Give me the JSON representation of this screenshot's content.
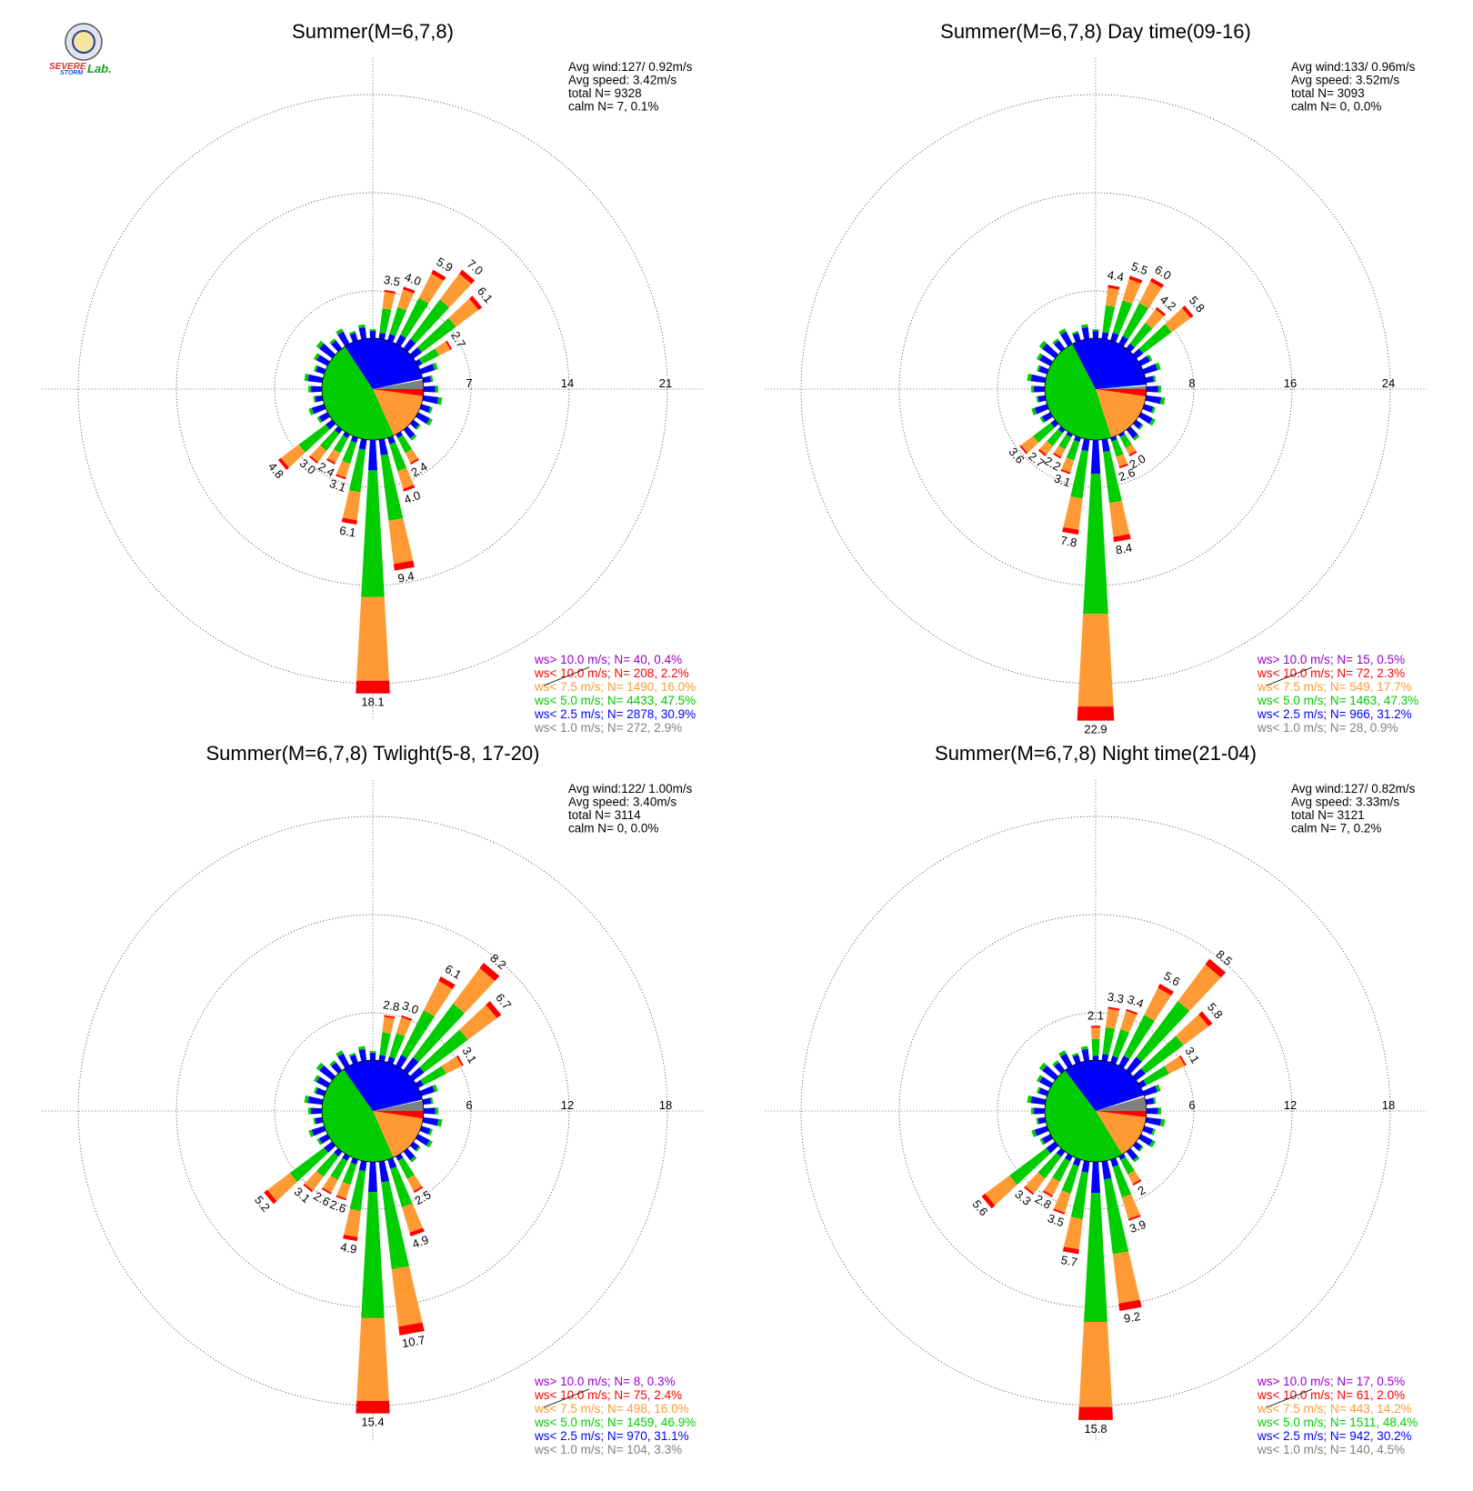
{
  "logo": {
    "text_severe": "SEVERE",
    "text_storm": "STORM",
    "text_lab": "Lab."
  },
  "colors": {
    "gt10": "#9900cc",
    "lt10": "#ff0000",
    "lt75": "#ff9933",
    "lt5": "#00cc00",
    "lt25": "#0000ff",
    "lt1": "#808080"
  },
  "chart_data": [
    {
      "type": "windrose",
      "title": "Summer(M=6,7,8)",
      "avg_wind": "Avg wind:127/ 0.92m/s",
      "avg_speed": "Avg speed: 3.42m/s",
      "total_n": "total N=      9328",
      "calm_n": "calm N=      7,   0.1%",
      "rings": [
        "7",
        "14",
        "21"
      ],
      "ring_values": [
        7,
        14,
        21
      ],
      "legend": [
        {
          "key": "gt10",
          "text": "ws> 10.0 m/s; N=    40,  0.4%"
        },
        {
          "key": "lt10",
          "text": "ws< 10.0 m/s; N=   208,  2.2%"
        },
        {
          "key": "lt75",
          "text": "ws<  7.5 m/s; N=  1490, 16.0%"
        },
        {
          "key": "lt5",
          "text": "ws<  5.0 m/s; N=  4433, 47.5%"
        },
        {
          "key": "lt25",
          "text": "ws<  2.5 m/s; N=  2878, 30.9%"
        },
        {
          "key": "lt1",
          "text": "ws<  1.0 m/s; N=   272,  2.9%"
        }
      ],
      "pie_percent": {
        "gt10": 0.4,
        "lt10": 2.2,
        "lt75": 16.0,
        "lt5": 47.5,
        "lt25": 30.9,
        "lt1": 2.9
      },
      "directions": [
        {
          "deg": 10,
          "value": 3.5,
          "label": "3.5"
        },
        {
          "deg": 20,
          "value": 4.0,
          "label": "4.0"
        },
        {
          "deg": 30,
          "value": 5.9,
          "label": "5.9"
        },
        {
          "deg": 40,
          "value": 7.0,
          "label": "7.0"
        },
        {
          "deg": 50,
          "value": 6.1,
          "label": "6.1"
        },
        {
          "deg": 60,
          "value": 2.7,
          "label": "2.7"
        },
        {
          "deg": 150,
          "value": 2.4,
          "label": "2.4"
        },
        {
          "deg": 160,
          "value": 4.0,
          "label": "4.0"
        },
        {
          "deg": 170,
          "value": 9.4,
          "label": "9.4"
        },
        {
          "deg": 180,
          "value": 18.1,
          "label": "18.1"
        },
        {
          "deg": 190,
          "value": 6.1,
          "label": "6.1"
        },
        {
          "deg": 200,
          "value": 3.1,
          "label": "3.1"
        },
        {
          "deg": 210,
          "value": 2.4,
          "label": "2.4"
        },
        {
          "deg": 220,
          "value": 3.0,
          "label": "3.0"
        },
        {
          "deg": 230,
          "value": 4.8,
          "label": "4.8"
        }
      ]
    },
    {
      "type": "windrose",
      "title": "Summer(M=6,7,8) Day time(09-16)",
      "avg_wind": "Avg wind:133/ 0.96m/s",
      "avg_speed": "Avg speed: 3.52m/s",
      "total_n": "total N=      3093",
      "calm_n": "calm N=      0,   0.0%",
      "rings": [
        "8",
        "16",
        "24"
      ],
      "ring_values": [
        8,
        16,
        24
      ],
      "legend": [
        {
          "key": "gt10",
          "text": "ws> 10.0 m/s; N=    15,  0.5%"
        },
        {
          "key": "lt10",
          "text": "ws< 10.0 m/s; N=    72,  2.3%"
        },
        {
          "key": "lt75",
          "text": "ws<  7.5 m/s; N=   549, 17.7%"
        },
        {
          "key": "lt5",
          "text": "ws<  5.0 m/s; N=  1463, 47.3%"
        },
        {
          "key": "lt25",
          "text": "ws<  2.5 m/s; N=   966, 31.2%"
        },
        {
          "key": "lt1",
          "text": "ws<  1.0 m/s; N=    28,  0.9%"
        }
      ],
      "pie_percent": {
        "gt10": 0.5,
        "lt10": 2.3,
        "lt75": 17.7,
        "lt5": 47.3,
        "lt25": 31.2,
        "lt1": 0.9
      },
      "directions": [
        {
          "deg": 10,
          "value": 4.4,
          "label": "4.4"
        },
        {
          "deg": 20,
          "value": 5.5,
          "label": "5.5"
        },
        {
          "deg": 30,
          "value": 6.0,
          "label": "6.0"
        },
        {
          "deg": 40,
          "value": 4.2,
          "label": "4.2"
        },
        {
          "deg": 50,
          "value": 5.8,
          "label": "5.8"
        },
        {
          "deg": 150,
          "value": 2.0,
          "label": "2.0"
        },
        {
          "deg": 160,
          "value": 2.6,
          "label": "2.6"
        },
        {
          "deg": 170,
          "value": 8.4,
          "label": "8.4"
        },
        {
          "deg": 180,
          "value": 22.9,
          "label": "22.9"
        },
        {
          "deg": 190,
          "value": 7.8,
          "label": "7.8"
        },
        {
          "deg": 200,
          "value": 3.1,
          "label": "3.1"
        },
        {
          "deg": 210,
          "value": 2.2,
          "label": "2.2"
        },
        {
          "deg": 220,
          "value": 2.7,
          "label": "2.7"
        },
        {
          "deg": 230,
          "value": 3.6,
          "label": "3.6"
        }
      ]
    },
    {
      "type": "windrose",
      "title": "Summer(M=6,7,8) Twlight(5-8, 17-20)",
      "avg_wind": "Avg wind:122/ 1.00m/s",
      "avg_speed": "Avg speed: 3.40m/s",
      "total_n": "total N=      3114",
      "calm_n": "calm N=      0,   0.0%",
      "rings": [
        "6",
        "12",
        "18"
      ],
      "ring_values": [
        6,
        12,
        18
      ],
      "legend": [
        {
          "key": "gt10",
          "text": "ws> 10.0 m/s; N=     8,  0.3%"
        },
        {
          "key": "lt10",
          "text": "ws< 10.0 m/s; N=    75,  2.4%"
        },
        {
          "key": "lt75",
          "text": "ws<  7.5 m/s; N=   498, 16.0%"
        },
        {
          "key": "lt5",
          "text": "ws<  5.0 m/s; N=  1459, 46.9%"
        },
        {
          "key": "lt25",
          "text": "ws<  2.5 m/s; N=   970, 31.1%"
        },
        {
          "key": "lt1",
          "text": "ws<  1.0 m/s; N=   104,  3.3%"
        }
      ],
      "pie_percent": {
        "gt10": 0.3,
        "lt10": 2.4,
        "lt75": 16.0,
        "lt5": 46.9,
        "lt25": 31.1,
        "lt1": 3.3
      },
      "directions": [
        {
          "deg": 10,
          "value": 2.8,
          "label": "2.8"
        },
        {
          "deg": 20,
          "value": 3.0,
          "label": "3.0"
        },
        {
          "deg": 30,
          "value": 6.1,
          "label": "6.1"
        },
        {
          "deg": 40,
          "value": 8.2,
          "label": "8.2"
        },
        {
          "deg": 50,
          "value": 6.7,
          "label": "6.7"
        },
        {
          "deg": 60,
          "value": 3.1,
          "label": "3.1"
        },
        {
          "deg": 150,
          "value": 2.5,
          "label": "2.5"
        },
        {
          "deg": 160,
          "value": 4.9,
          "label": "4.9"
        },
        {
          "deg": 170,
          "value": 10.7,
          "label": "10.7"
        },
        {
          "deg": 180,
          "value": 15.4,
          "label": "15.4"
        },
        {
          "deg": 190,
          "value": 4.9,
          "label": "4.9"
        },
        {
          "deg": 200,
          "value": 2.6,
          "label": "2.6"
        },
        {
          "deg": 210,
          "value": 2.6,
          "label": "2.6"
        },
        {
          "deg": 220,
          "value": 3.1,
          "label": "3.1"
        },
        {
          "deg": 230,
          "value": 5.2,
          "label": "5.2"
        }
      ]
    },
    {
      "type": "windrose",
      "title": "Summer(M=6,7,8) Night time(21-04)",
      "avg_wind": "Avg wind:127/ 0.82m/s",
      "avg_speed": "Avg speed: 3.33m/s",
      "total_n": "total N=      3121",
      "calm_n": "calm N=      7,   0.2%",
      "rings": [
        "6",
        "12",
        "18"
      ],
      "ring_values": [
        6,
        12,
        18
      ],
      "legend": [
        {
          "key": "gt10",
          "text": "ws> 10.0 m/s; N=    17,  0.5%"
        },
        {
          "key": "lt10",
          "text": "ws< 10.0 m/s; N=    61,  2.0%"
        },
        {
          "key": "lt75",
          "text": "ws<  7.5 m/s; N=   443, 14.2%"
        },
        {
          "key": "lt5",
          "text": "ws<  5.0 m/s; N=  1511, 48.4%"
        },
        {
          "key": "lt25",
          "text": "ws<  2.5 m/s; N=   942, 30.2%"
        },
        {
          "key": "lt1",
          "text": "ws<  1.0 m/s; N=   140,  4.5%"
        }
      ],
      "pie_percent": {
        "gt10": 0.5,
        "lt10": 2.0,
        "lt75": 14.2,
        "lt5": 48.4,
        "lt25": 30.2,
        "lt1": 4.5
      },
      "directions": [
        {
          "deg": 0,
          "value": 2.1,
          "label": "2.1"
        },
        {
          "deg": 10,
          "value": 3.3,
          "label": "3.3"
        },
        {
          "deg": 20,
          "value": 3.4,
          "label": "3.4"
        },
        {
          "deg": 30,
          "value": 5.6,
          "label": "5.6"
        },
        {
          "deg": 40,
          "value": 8.5,
          "label": "8.5"
        },
        {
          "deg": 50,
          "value": 5.8,
          "label": "5.8"
        },
        {
          "deg": 60,
          "value": 3.1,
          "label": "3.1"
        },
        {
          "deg": 150,
          "value": 2.0,
          "label": "2"
        },
        {
          "deg": 160,
          "value": 3.9,
          "label": "3.9"
        },
        {
          "deg": 170,
          "value": 9.2,
          "label": "9.2"
        },
        {
          "deg": 180,
          "value": 15.8,
          "label": "15.8"
        },
        {
          "deg": 190,
          "value": 5.7,
          "label": "5.7"
        },
        {
          "deg": 200,
          "value": 3.5,
          "label": "3.5"
        },
        {
          "deg": 210,
          "value": 2.8,
          "label": "2.8"
        },
        {
          "deg": 220,
          "value": 3.3,
          "label": "3.3"
        },
        {
          "deg": 230,
          "value": 5.6,
          "label": "5.6"
        }
      ]
    }
  ]
}
